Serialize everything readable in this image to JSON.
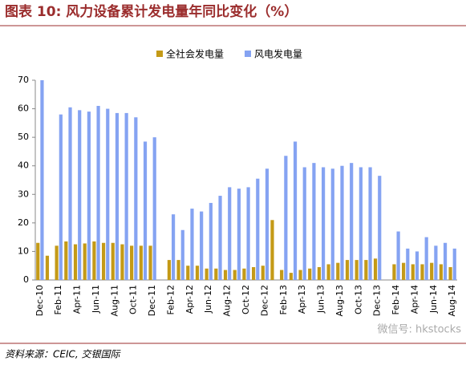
{
  "chart_data": {
    "type": "bar",
    "title": "图表 10: 风力设备累计发电量年同比变化（%）",
    "source": "资料来源：CEIC, 交银国际",
    "watermark": "微信号: hkstocks",
    "categories": [
      "Dec-10",
      null,
      "Feb-11",
      null,
      "Apr-11",
      null,
      "Jun-11",
      null,
      "Aug-11",
      null,
      "Oct-11",
      null,
      "Dec-11",
      null,
      "Feb-12",
      null,
      "Apr-12",
      null,
      "Jun-12",
      null,
      "Aug-12",
      null,
      "Oct-12",
      null,
      "Dec-12",
      null,
      "Feb-13",
      null,
      "Apr-13",
      null,
      "Jun-13",
      null,
      "Aug-13",
      null,
      "Oct-13",
      null,
      "Dec-13",
      null,
      "Feb-14",
      null,
      "Apr-14",
      null,
      "Jun-14",
      null,
      "Aug-14"
    ],
    "series": [
      {
        "name": "全社会发电量",
        "color": "#c49a17",
        "values": [
          13,
          8.5,
          12,
          13.5,
          12.5,
          12.8,
          13.5,
          13,
          13,
          12.5,
          12,
          12,
          12,
          null,
          7,
          7,
          5,
          5,
          4,
          4,
          3.5,
          3.5,
          4,
          4.5,
          5,
          21,
          3.5,
          2.5,
          3.5,
          4,
          4.5,
          5.5,
          6,
          7,
          7,
          7,
          7.5,
          null,
          5.5,
          6,
          5.5,
          5.5,
          6,
          5.5,
          4.5
        ]
      },
      {
        "name": "风电发电量",
        "color": "#85a3f2",
        "values": [
          70,
          null,
          58,
          60.5,
          59.5,
          59,
          61,
          60,
          58.5,
          58.5,
          57,
          48.5,
          50,
          null,
          23,
          17.5,
          25,
          24,
          27,
          29.5,
          32.5,
          32,
          32.5,
          35.5,
          39,
          null,
          43.5,
          48.5,
          39.5,
          41,
          39.5,
          39,
          40,
          41,
          39.5,
          39.5,
          36.5,
          null,
          17,
          11,
          10,
          15,
          12,
          13,
          11
        ]
      }
    ],
    "ylim": [
      0,
      70
    ],
    "yticks": [
      0,
      10,
      20,
      30,
      40,
      50,
      60,
      70
    ],
    "grid": false
  }
}
